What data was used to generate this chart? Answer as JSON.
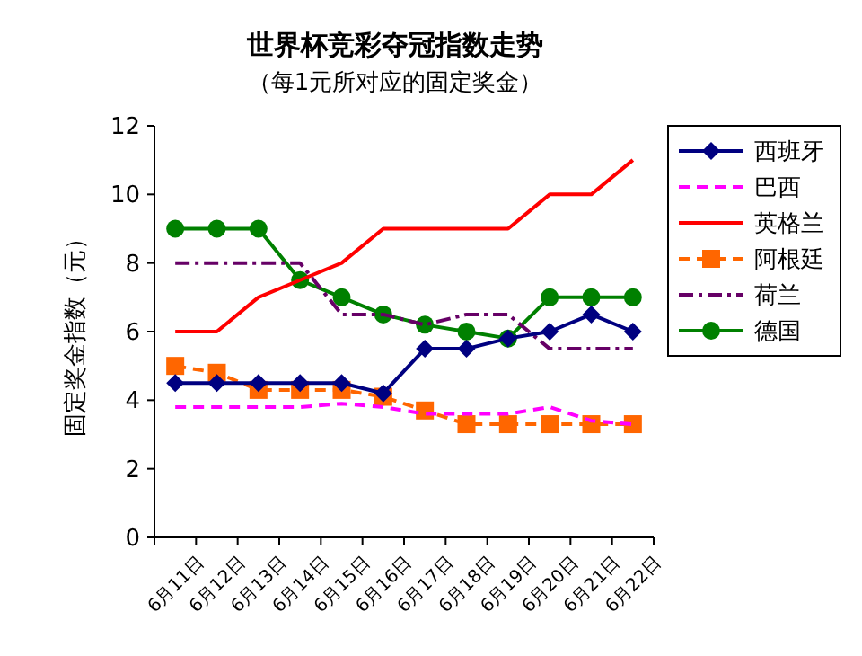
{
  "chart_data": {
    "type": "line",
    "title": "世界杯竞彩夺冠指数走势",
    "subtitle": "（每1元所对应的固定奖金）",
    "ylabel": "固定奖金指数（元）",
    "categories": [
      "6月11日",
      "6月12日",
      "6月13日",
      "6月14日",
      "6月15日",
      "6月16日",
      "6月17日",
      "6月18日",
      "6月19日",
      "6月20日",
      "6月21日",
      "6月22日"
    ],
    "ylim": [
      0,
      12
    ],
    "yticks": [
      0,
      2,
      4,
      6,
      8,
      10,
      12
    ],
    "grid": false,
    "legend": "right",
    "series": [
      {
        "name": "西班牙",
        "color": "#000080",
        "marker": "diamond",
        "line_style": "solid",
        "values": [
          4.5,
          4.5,
          4.5,
          4.5,
          4.5,
          4.2,
          5.5,
          5.5,
          5.8,
          6,
          6.5,
          6
        ]
      },
      {
        "name": "巴西",
        "color": "#ff00ff",
        "marker": "none",
        "line_style": "dashed",
        "values": [
          3.8,
          3.8,
          3.8,
          3.8,
          3.9,
          3.8,
          3.6,
          3.6,
          3.6,
          3.8,
          3.4,
          3.3
        ]
      },
      {
        "name": "英格兰",
        "color": "#ff0000",
        "marker": "none",
        "line_style": "solid",
        "values": [
          6,
          6,
          7,
          7.5,
          8,
          9,
          9,
          9,
          9,
          10,
          10,
          11
        ]
      },
      {
        "name": "阿根廷",
        "color": "#ff6600",
        "marker": "square",
        "line_style": "dashed",
        "values": [
          5,
          4.8,
          4.3,
          4.3,
          4.3,
          4.1,
          3.7,
          3.3,
          3.3,
          3.3,
          3.3,
          3.3
        ]
      },
      {
        "name": "荷兰",
        "color": "#660066",
        "marker": "none",
        "line_style": "dashdot",
        "values": [
          8,
          8,
          8,
          8,
          6.5,
          6.5,
          6.2,
          6.5,
          6.5,
          5.5,
          5.5,
          5.5
        ]
      },
      {
        "name": "德国",
        "color": "#008000",
        "marker": "circle",
        "line_style": "solid",
        "values": [
          9,
          9,
          9,
          7.5,
          7,
          6.5,
          6.2,
          6,
          5.8,
          7,
          7,
          7
        ]
      }
    ]
  }
}
